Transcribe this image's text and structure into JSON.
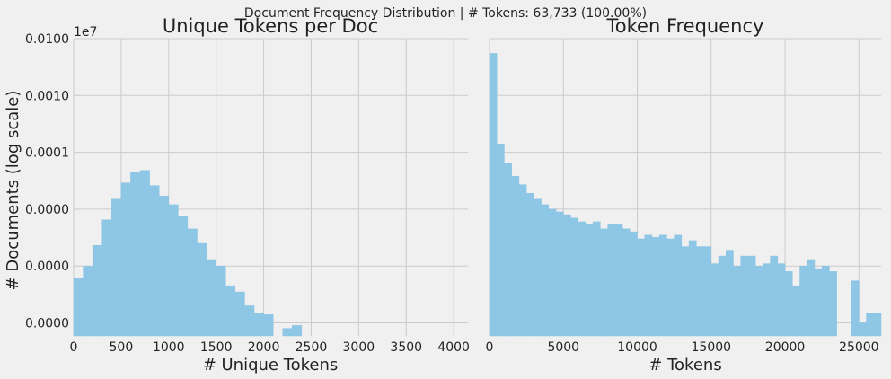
{
  "suptitle": "Document Frequency Distribution | # Tokens: 63,733 (100.00%)",
  "shared_ylabel": "# Documents (log scale)",
  "y_offset_label": "1e7",
  "y_tick_labels": [
    "0.0100",
    "0.0010",
    "0.0001",
    "0.0000",
    "0.0000",
    "0.0000"
  ],
  "chart_data": [
    {
      "type": "bar",
      "title": "Unique Tokens per Doc",
      "xlabel": "# Unique Tokens",
      "ylabel": "# Documents (log scale)",
      "y_scale": "log",
      "y_offset": "1e7",
      "xlim": [
        0,
        4150
      ],
      "x_ticks": [
        0,
        500,
        1000,
        1500,
        2000,
        2500,
        3000,
        3500,
        4000
      ],
      "y_tick_labels": [
        "0.0100",
        "0.0010",
        "0.0001",
        "0.0000",
        "0.0000",
        "0.0000"
      ],
      "grid": true,
      "bin_width": 100,
      "bin_starts": [
        0,
        100,
        200,
        300,
        400,
        500,
        600,
        700,
        800,
        900,
        1000,
        1100,
        1200,
        1300,
        1400,
        1500,
        1600,
        1700,
        1800,
        1900,
        2000,
        2100,
        2200,
        2300,
        2400,
        2500,
        2600,
        2700,
        2800,
        2900,
        3000,
        3100,
        3200,
        3300,
        3400,
        3500,
        3600,
        3700,
        3800,
        3900,
        4000,
        4100
      ],
      "values": [
        6e-07,
        1e-06,
        2.3e-06,
        6.5e-06,
        1.5e-05,
        2.9e-05,
        4.4e-05,
        4.8e-05,
        2.6e-05,
        1.7e-05,
        1.2e-05,
        7.5e-06,
        4.5e-06,
        2.5e-06,
        1.3e-06,
        1e-06,
        4.5e-07,
        3.5e-07,
        2e-07,
        1.5e-07,
        1.4e-07,
        5.5e-08,
        8e-08,
        9e-08,
        3e-08,
        3e-08,
        3e-08,
        3e-08,
        1.5e-08,
        1.5e-08,
        1.5e-08,
        3e-08,
        1e-08,
        0,
        0,
        1.5e-08,
        3e-08,
        3e-08,
        0,
        0,
        0,
        1e-08
      ]
    },
    {
      "type": "bar",
      "title": "Token Frequency",
      "xlabel": "# Tokens",
      "y_scale": "log",
      "xlim": [
        0,
        26500
      ],
      "x_ticks": [
        0,
        5000,
        10000,
        15000,
        20000,
        25000
      ],
      "grid": true,
      "bin_width": 500,
      "bin_starts": [
        0,
        500,
        1000,
        1500,
        2000,
        2500,
        3000,
        3500,
        4000,
        4500,
        5000,
        5500,
        6000,
        6500,
        7000,
        7500,
        8000,
        8500,
        9000,
        9500,
        10000,
        10500,
        11000,
        11500,
        12000,
        12500,
        13000,
        13500,
        14000,
        14500,
        15000,
        15500,
        16000,
        16500,
        17000,
        17500,
        18000,
        18500,
        19000,
        19500,
        20000,
        20500,
        21000,
        21500,
        22000,
        22500,
        23000,
        23500,
        24000,
        24500,
        25000,
        25500,
        26000
      ],
      "values": [
        0.0055,
        0.00014,
        6.5e-05,
        3.8e-05,
        2.7e-05,
        1.9e-05,
        1.5e-05,
        1.2e-05,
        1e-05,
        9e-06,
        8e-06,
        7e-06,
        6e-06,
        5.5e-06,
        6e-06,
        4.5e-06,
        5.5e-06,
        5.5e-06,
        4.5e-06,
        4e-06,
        3e-06,
        3.5e-06,
        3.2e-06,
        3.5e-06,
        3e-06,
        3.5e-06,
        2.2e-06,
        2.8e-06,
        2.2e-06,
        2.2e-06,
        1.1e-06,
        1.5e-06,
        1.9e-06,
        1e-06,
        1.5e-06,
        1.5e-06,
        1e-06,
        1.1e-06,
        1.5e-06,
        1.1e-06,
        8e-07,
        4.5e-07,
        1e-06,
        1.3e-06,
        9e-07,
        1e-06,
        8e-07,
        3e-08,
        3e-08,
        5.5e-07,
        1e-07,
        1.5e-07,
        1.5e-07
      ]
    }
  ]
}
